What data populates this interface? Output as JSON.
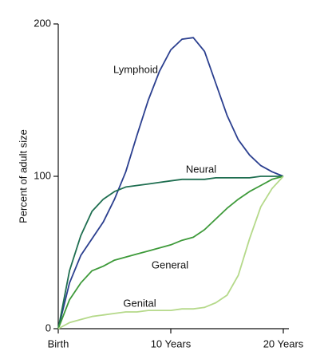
{
  "chart_data": {
    "type": "line",
    "y_label": "Percent of adult size",
    "x": [
      0,
      1,
      2,
      3,
      4,
      5,
      6,
      7,
      8,
      9,
      10,
      11,
      12,
      13,
      14,
      15,
      16,
      17,
      18,
      19,
      20
    ],
    "xlim": [
      0,
      20
    ],
    "xticks": [
      {
        "value": 0,
        "label": "Birth"
      },
      {
        "value": 10,
        "label": "10 Years"
      },
      {
        "value": 20,
        "label": "20 Years"
      }
    ],
    "ylim": [
      0,
      200
    ],
    "yticks": [
      0,
      100,
      200
    ],
    "series": [
      {
        "name": "Lymphoid",
        "color": "#2b3f8f",
        "values": [
          0,
          30,
          48,
          59,
          70,
          85,
          103,
          127,
          150,
          169,
          183,
          190,
          191,
          182,
          161,
          140,
          124,
          114,
          107,
          103,
          100
        ]
      },
      {
        "name": "Neural",
        "color": "#1e6e50",
        "values": [
          0,
          38,
          61,
          77,
          85,
          90,
          93,
          94,
          95,
          96,
          97,
          98,
          98,
          98,
          99,
          99,
          99,
          99,
          100,
          100,
          100
        ]
      },
      {
        "name": "General",
        "color": "#3e9a3a",
        "values": [
          0,
          19,
          30,
          38,
          41,
          45,
          47,
          49,
          51,
          53,
          55,
          58,
          60,
          65,
          72,
          79,
          85,
          90,
          94,
          98,
          100
        ]
      },
      {
        "name": "Genital",
        "color": "#b5d98a",
        "values": [
          0,
          4,
          6,
          8,
          9,
          10,
          11,
          11,
          12,
          12,
          12,
          13,
          13,
          14,
          17,
          22,
          35,
          59,
          80,
          92,
          100
        ]
      }
    ]
  }
}
